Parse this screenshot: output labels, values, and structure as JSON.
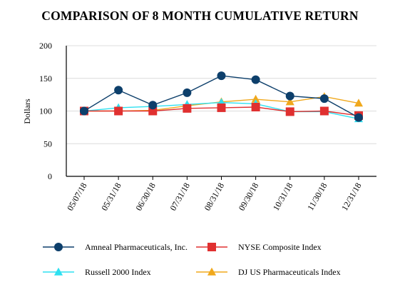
{
  "chart_data": {
    "type": "line",
    "title": "COMPARISON OF 8 MONTH CUMULATIVE RETURN",
    "ylabel": "Dollars",
    "xlabel": "",
    "ylim": [
      0,
      200
    ],
    "yticks": [
      0,
      50,
      100,
      150,
      200
    ],
    "categories": [
      "05/07/18",
      "05/31/18",
      "06/30/18",
      "07/31/18",
      "08/31/18",
      "09/30/18",
      "10/31/18",
      "11/30/18",
      "12/31/18"
    ],
    "grid": "horizontal",
    "legend_position": "bottom",
    "series": [
      {
        "name": "Amneal Pharmaceuticals, Inc.",
        "color": "#0d3f6b",
        "marker": "circle",
        "values": [
          100,
          132,
          109,
          128,
          154,
          148,
          123,
          119,
          90
        ]
      },
      {
        "name": "NYSE Composite Index",
        "color": "#e03030",
        "marker": "square",
        "values": [
          100,
          100,
          100,
          104,
          105,
          106,
          99,
          100,
          93
        ]
      },
      {
        "name": "Russell 2000 Index",
        "color": "#2ee0f0",
        "marker": "triangle",
        "values": [
          100,
          105,
          107,
          110,
          113,
          111,
          99,
          99,
          88
        ]
      },
      {
        "name": "DJ US Pharmaceuticals Index",
        "color": "#f0a81c",
        "marker": "triangle",
        "values": [
          100,
          100,
          101,
          108,
          114,
          118,
          114,
          122,
          112
        ]
      }
    ]
  }
}
